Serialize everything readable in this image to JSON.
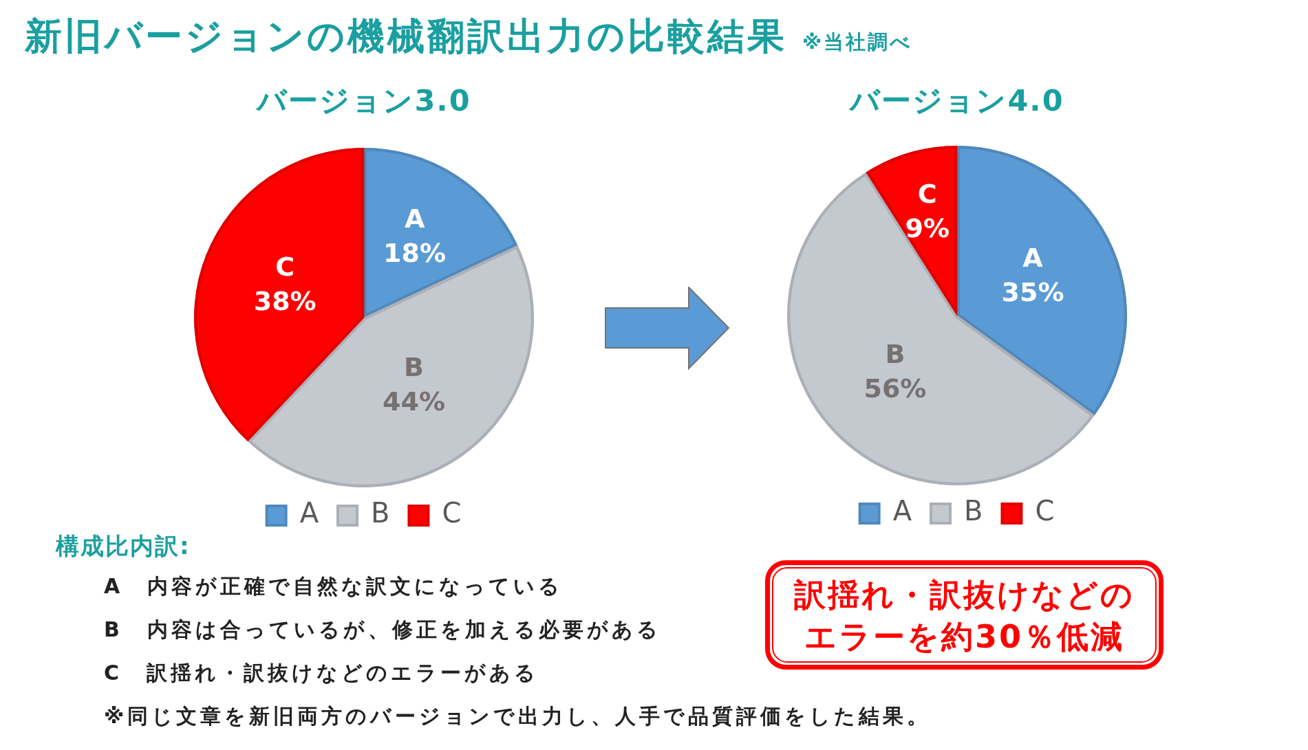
{
  "chart_data": [
    {
      "type": "other",
      "title": "新旧バージョンの機械翻訳出力の比較結果",
      "annotations": [
        "※当社調べ"
      ]
    },
    {
      "type": "pie",
      "title": "バージョン3.0",
      "categories": [
        "A",
        "B",
        "C"
      ],
      "values": [
        18,
        44,
        38
      ],
      "value_labels": [
        "18%",
        "44%",
        "38%"
      ],
      "colors": [
        "#5b9bd5",
        "#c4c8cf",
        "#ff0000"
      ],
      "legend": "bottom"
    },
    {
      "type": "pie",
      "title": "バージョン4.0",
      "categories": [
        "A",
        "B",
        "C"
      ],
      "values": [
        35,
        56,
        9
      ],
      "value_labels": [
        "35%",
        "56%",
        "9%"
      ],
      "colors": [
        "#5b9bd5",
        "#c4c8cf",
        "#ff0000"
      ],
      "legend": "bottom"
    },
    {
      "type": "other",
      "title": "構成比内訳:",
      "annotations": [
        "A　内容が正確で自然な訳文になっている",
        "B　内容は合っているが、修正を加える必要がある",
        "C　訳揺れ・訳抜けなどのエラーがある",
        "※同じ文章を新旧両方のバージョンで出力し、人手で品質評価をした結果。"
      ]
    },
    {
      "type": "other",
      "annotations": [
        "訳揺れ・訳抜けなどの",
        "エラーを約30％低減"
      ]
    }
  ]
}
